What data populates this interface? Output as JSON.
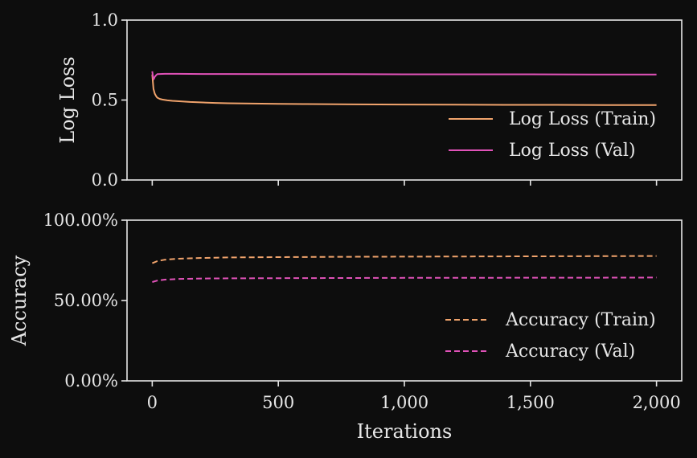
{
  "colors": {
    "background": "#0d0d0d",
    "axes": "#e6e6e6",
    "train": "#f0a36c",
    "val": "#e052b8"
  },
  "chart_data": [
    {
      "type": "line",
      "ylabel": "Log Loss",
      "xlabel": "",
      "xlim": [
        -100,
        2100
      ],
      "ylim": [
        0,
        1
      ],
      "y_ticks": [
        0.0,
        0.5,
        1.0
      ],
      "y_tick_labels": [
        "0.0",
        "0.5",
        "1.0"
      ],
      "x_ticks": [
        0,
        500,
        1000,
        1500,
        2000
      ],
      "legend_position": "bottom-right",
      "grid": false,
      "series": [
        {
          "name": "Log Loss (Train)",
          "style": "solid",
          "color": "#f0a36c",
          "x": [
            0,
            5,
            10,
            15,
            20,
            30,
            40,
            60,
            80,
            100,
            150,
            200,
            250,
            300,
            400,
            500,
            600,
            800,
            1000,
            1200,
            1400,
            1600,
            1800,
            2000
          ],
          "y": [
            0.66,
            0.57,
            0.54,
            0.525,
            0.515,
            0.507,
            0.503,
            0.498,
            0.495,
            0.493,
            0.488,
            0.485,
            0.482,
            0.48,
            0.478,
            0.476,
            0.475,
            0.473,
            0.472,
            0.471,
            0.47,
            0.47,
            0.469,
            0.469
          ]
        },
        {
          "name": "Log Loss (Val)",
          "style": "solid",
          "color": "#e052b8",
          "x": [
            0,
            3,
            6,
            10,
            15,
            20,
            30,
            50,
            100,
            200,
            300,
            500,
            750,
            1000,
            1250,
            1500,
            1750,
            2000
          ],
          "y": [
            0.68,
            0.645,
            0.63,
            0.645,
            0.655,
            0.662,
            0.663,
            0.664,
            0.664,
            0.663,
            0.663,
            0.662,
            0.662,
            0.661,
            0.661,
            0.661,
            0.66,
            0.66
          ]
        }
      ]
    },
    {
      "type": "line",
      "ylabel": "Accuracy",
      "xlabel": "Iterations",
      "xlim": [
        -100,
        2100
      ],
      "ylim": [
        0,
        100
      ],
      "y_ticks": [
        0,
        50,
        100
      ],
      "y_tick_labels": [
        "0.00%",
        "50.00%",
        "100.00%"
      ],
      "x_ticks": [
        0,
        500,
        1000,
        1500,
        2000
      ],
      "x_tick_labels": [
        "0",
        "500",
        "1,000",
        "1,500",
        "2,000"
      ],
      "legend_position": "bottom-right",
      "grid": false,
      "series": [
        {
          "name": "Accuracy (Train)",
          "style": "dashed",
          "color": "#f0a36c",
          "x": [
            0,
            20,
            50,
            100,
            200,
            300,
            500,
            750,
            1000,
            1250,
            1500,
            1750,
            2000
          ],
          "y": [
            73.2,
            74.5,
            75.4,
            76.0,
            76.5,
            76.8,
            77.0,
            77.2,
            77.3,
            77.4,
            77.5,
            77.6,
            77.7
          ]
        },
        {
          "name": "Accuracy (Val)",
          "style": "dashed",
          "color": "#e052b8",
          "x": [
            0,
            20,
            50,
            100,
            200,
            300,
            500,
            750,
            1000,
            1250,
            1500,
            1750,
            2000
          ],
          "y": [
            61.5,
            62.4,
            63.0,
            63.4,
            63.7,
            63.8,
            63.9,
            64.0,
            64.1,
            64.1,
            64.2,
            64.2,
            64.3
          ]
        }
      ]
    }
  ]
}
